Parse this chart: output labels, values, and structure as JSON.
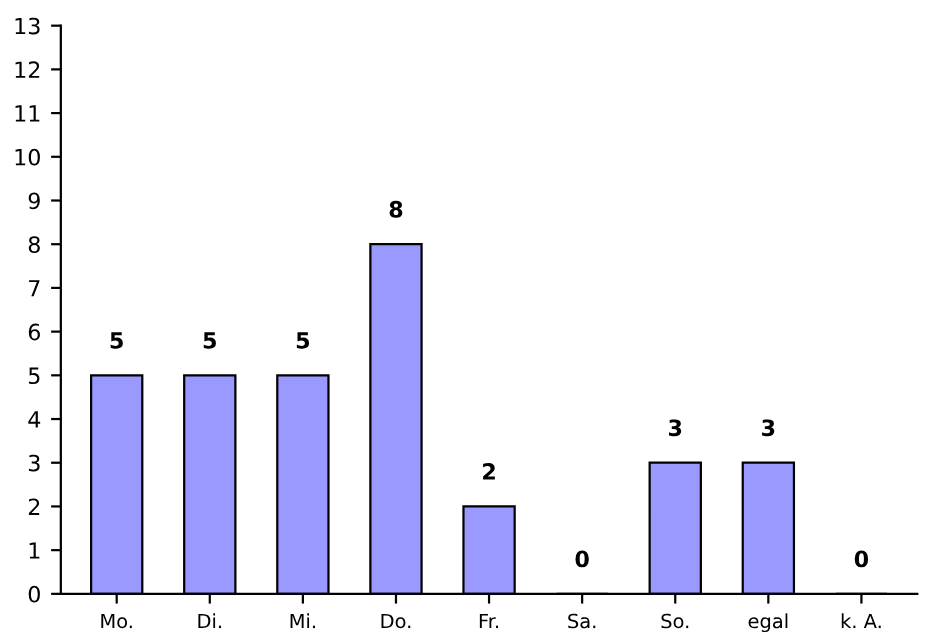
{
  "chart_data": {
    "type": "bar",
    "categories": [
      "Mo.",
      "Di.",
      "Mi.",
      "Do.",
      "Fr.",
      "Sa.",
      "So.",
      "egal",
      "k. A."
    ],
    "values": [
      5,
      5,
      5,
      8,
      2,
      0,
      3,
      3,
      0
    ],
    "color": "#9999ff",
    "ylim": [
      0,
      13
    ],
    "yticks": [
      0,
      1,
      2,
      3,
      4,
      5,
      6,
      7,
      8,
      9,
      10,
      11,
      12,
      13
    ],
    "data_labels": true,
    "grid": false,
    "legend": false
  }
}
